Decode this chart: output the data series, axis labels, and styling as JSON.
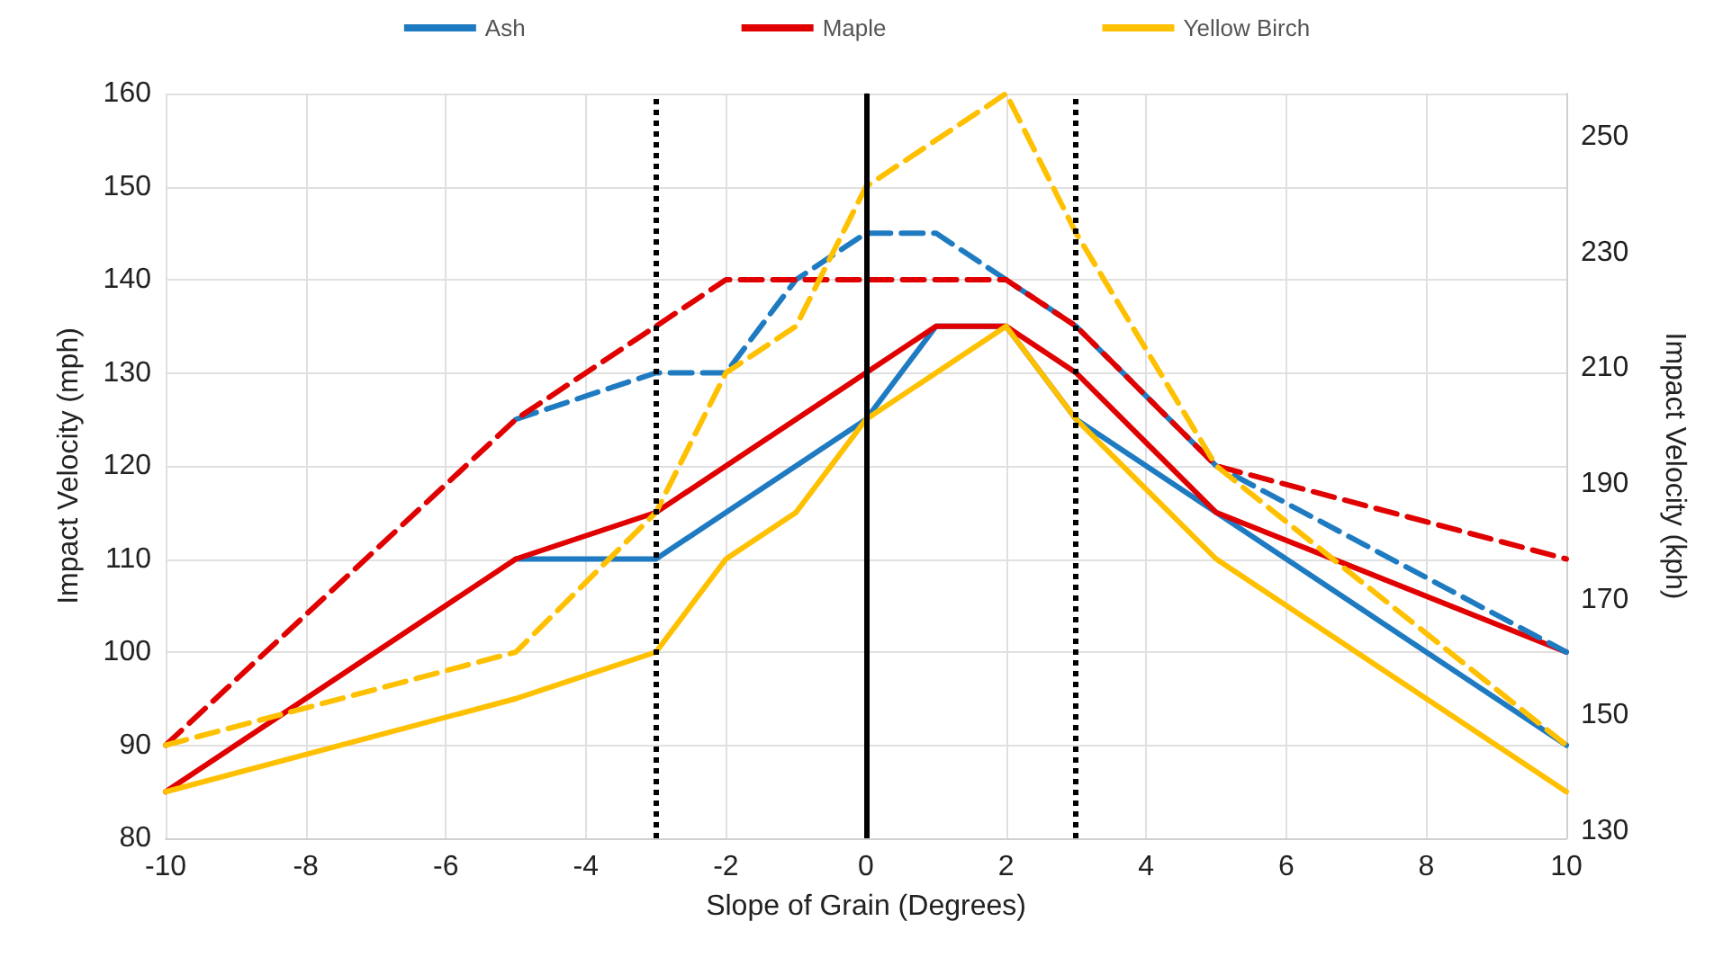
{
  "chart_data": {
    "type": "line",
    "xlabel": "Slope of Grain (Degrees)",
    "ylabel": "Impact Velocity (mph)",
    "y2label": "Impact Velocity (kph)",
    "xlim": [
      -10,
      10
    ],
    "xticks": [
      -10,
      -8,
      -6,
      -4,
      -2,
      0,
      2,
      4,
      6,
      8,
      10
    ],
    "ylim": [
      80,
      160
    ],
    "yticks": [
      80,
      90,
      100,
      110,
      120,
      130,
      140,
      150,
      160
    ],
    "y2lim": [
      128.7,
      257.5
    ],
    "y2ticks": [
      130,
      150,
      170,
      190,
      210,
      230,
      250
    ],
    "grid": true,
    "legend": "top",
    "marker": "none",
    "series": [
      {
        "name": "Ash",
        "color": "#1f7bc1",
        "line_style": "solid",
        "x": [
          -5,
          -3,
          -2,
          -1,
          0,
          1,
          2,
          3,
          5,
          10
        ],
        "values": [
          110,
          110,
          115,
          120,
          125,
          135,
          135,
          125,
          115,
          90
        ]
      },
      {
        "name": "Maple",
        "color": "#e00000",
        "line_style": "solid",
        "x": [
          -10,
          -5,
          -3,
          0,
          1,
          2,
          3,
          5,
          10
        ],
        "values": [
          85,
          110,
          115,
          130,
          135,
          135,
          130,
          115,
          100
        ]
      },
      {
        "name": "Yellow Birch",
        "color": "#ffc000",
        "line_style": "solid",
        "x": [
          -10,
          -5,
          -3,
          -2,
          -1,
          0,
          2,
          3,
          5,
          10
        ],
        "values": [
          85,
          95,
          100,
          110,
          115,
          125,
          135,
          125,
          110,
          85
        ]
      },
      {
        "color": "#1f7bc1",
        "line_style": "dashed",
        "x": [
          -5,
          -3,
          -2,
          -1,
          0,
          1,
          2,
          3,
          5,
          10
        ],
        "values": [
          125,
          130,
          130,
          140,
          145,
          145,
          140,
          135,
          120,
          100
        ]
      },
      {
        "color": "#e00000",
        "line_style": "dashed",
        "x": [
          -10,
          -5,
          -3,
          -2,
          0,
          2,
          3,
          5,
          10
        ],
        "values": [
          90,
          125,
          135,
          140,
          140,
          140,
          135,
          120,
          110
        ]
      },
      {
        "color": "#ffc000",
        "line_style": "dashed",
        "x": [
          -10,
          -5,
          -3,
          -2,
          -1,
          0,
          2,
          3,
          5,
          10
        ],
        "values": [
          90,
          100,
          115,
          130,
          135,
          150,
          160,
          145,
          120,
          90
        ]
      }
    ],
    "ref_lines": [
      {
        "axis": "x",
        "value": -3,
        "color": "#000000",
        "line_style": "dotted"
      },
      {
        "axis": "x",
        "value": 0,
        "color": "#000000",
        "line_style": "solid"
      },
      {
        "axis": "x",
        "value": 3,
        "color": "#000000",
        "line_style": "dotted"
      }
    ]
  }
}
